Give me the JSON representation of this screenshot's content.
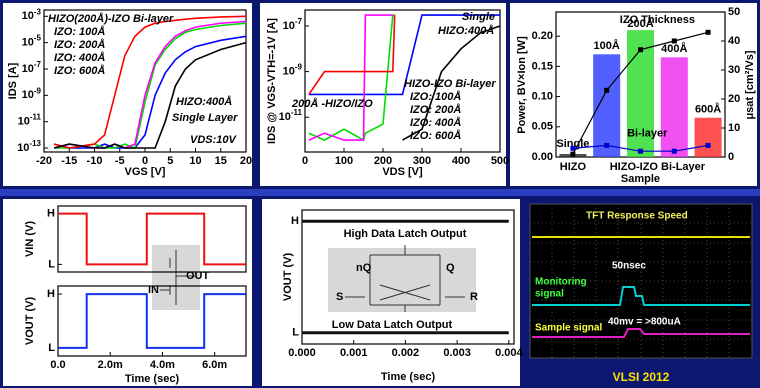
{
  "chart_data": [
    {
      "type": "line",
      "log_y": true,
      "y_label": "IDS [A]",
      "x_label": "VGS [V]",
      "xlim": [
        -20,
        20
      ],
      "xticks": [
        -20,
        -15,
        -10,
        -5,
        0,
        5,
        10,
        15,
        20
      ],
      "ylim": [
        5e-14,
        0.003
      ],
      "yticks": [
        {
          "value": 1e-13,
          "label": "10-13"
        },
        {
          "value": 1e-11,
          "label": "10-11"
        },
        {
          "value": 1e-09,
          "label": "10-9"
        },
        {
          "value": 1e-07,
          "label": "10-7"
        },
        {
          "value": 1e-05,
          "label": "10-5"
        },
        {
          "value": 0.001,
          "label": "10-3"
        }
      ],
      "legend_title": "HIZO(200Å)-IZO Bi-layer",
      "annotations": [
        "HIZO:400Å",
        "Single Layer",
        "VDS:10V"
      ],
      "x": [
        -18,
        -15,
        -10,
        -8,
        -6,
        -4,
        -2,
        0,
        2,
        4,
        6,
        8,
        10,
        15,
        20
      ],
      "series": [
        {
          "name": "IZO: 100Å",
          "color": "#0000ff",
          "values": [
            2e-13,
            1e-13,
            1e-13,
            2e-13,
            1e-13,
            1e-13,
            1e-13,
            1e-12,
            1e-09,
            5e-08,
            5e-07,
            2e-06,
            5e-06,
            1.5e-05,
            3e-05
          ]
        },
        {
          "name": "IZO: 200Å",
          "color": "#00dd00",
          "values": [
            1e-13,
            1e-13,
            2e-13,
            1e-13,
            1e-13,
            2e-13,
            1e-13,
            3e-10,
            2e-07,
            3e-06,
            2e-05,
            6e-05,
            0.0001,
            0.0002,
            0.0003
          ]
        },
        {
          "name": "IZO: 400Å",
          "color": "#ff00ff",
          "values": [
            1e-13,
            2e-13,
            1e-13,
            1e-13,
            2e-13,
            1e-13,
            2e-13,
            1e-09,
            3e-07,
            5e-06,
            3e-05,
            8e-05,
            0.00015,
            0.0003,
            0.0004
          ]
        },
        {
          "name": "IZO: 600Å",
          "color": "#ff0000",
          "values": [
            2e-13,
            1e-13,
            2e-13,
            1e-12,
            1e-09,
            1e-06,
            3e-05,
            0.00015,
            0.0003,
            0.0004,
            0.0005,
            0.0006,
            0.0007,
            0.0009,
            0.001
          ]
        },
        {
          "color": "#000000",
          "values": [
            1e-13,
            2e-13,
            1e-13,
            1e-13,
            2e-13,
            1e-13,
            1e-13,
            1e-13,
            1e-13,
            1e-11,
            5e-09,
            1e-07,
            5e-07,
            3e-06,
            1e-05
          ]
        }
      ]
    },
    {
      "type": "line",
      "log_y": true,
      "y_label": "IDS @ VGS-VTH=-1V [A]",
      "x_label": "VDS [V]",
      "xlim": [
        0,
        500
      ],
      "xticks": [
        0,
        100,
        200,
        300,
        400,
        500
      ],
      "ylim": [
        3e-13,
        5e-07
      ],
      "yticks": [
        {
          "value": 1e-11,
          "label": "10-11"
        },
        {
          "value": 1e-09,
          "label": "10-9"
        },
        {
          "value": 1e-07,
          "label": "10-7"
        }
      ],
      "legend_title": "HIZO-IZO Bi-layer",
      "annotations": [
        "Single",
        "HIZO:400Å",
        "200Å -HIZO/IZO"
      ],
      "x": [
        10,
        50,
        100,
        150,
        155,
        200,
        225,
        230,
        250,
        300,
        350,
        400,
        450,
        500
      ],
      "series": [
        {
          "name": "IZO: 100Å",
          "color": "#0000ff",
          "values": [
            1e-10,
            1e-10,
            1e-10,
            1e-10,
            1e-10,
            1e-10,
            1e-10,
            1e-10,
            1e-10,
            3e-07,
            3e-07,
            3e-07,
            3e-07,
            3e-07
          ]
        },
        {
          "name": "IZO: 200Å",
          "color": "#00dd00",
          "values": [
            2e-12,
            1e-12,
            3e-12,
            1e-12,
            2e-12,
            5e-12,
            3e-07,
            3e-07,
            null,
            null,
            null,
            null,
            null,
            null
          ]
        },
        {
          "name": "IZO: 400Å",
          "color": "#ff00ff",
          "values": [
            1e-12,
            2e-12,
            1e-12,
            1e-12,
            3e-07,
            3e-07,
            3e-07,
            null,
            null,
            null,
            null,
            null,
            null,
            null
          ]
        },
        {
          "name": "IZO: 600Å",
          "color": "#ff0000",
          "values": [
            1e-10,
            1e-09,
            1e-09,
            1e-09,
            1e-09,
            1e-09,
            1e-09,
            3e-07,
            null,
            null,
            null,
            null,
            null,
            null
          ]
        },
        {
          "color": "#000000",
          "values": [
            null,
            null,
            null,
            null,
            null,
            null,
            null,
            null,
            1e-12,
            3e-12,
            1e-09,
            1e-08,
            5e-08,
            1e-07
          ]
        }
      ]
    },
    {
      "type": "bar",
      "title": "IZO Thickness",
      "x_label": "Sample",
      "y_label": "Power, BV×Ion [W]",
      "y2_label": "μsat [cm²/Vs]",
      "group_labels": [
        "HIZO",
        "HIZO-IZO Bi-Layer"
      ],
      "categories": [
        "Single",
        "100Å",
        "200Å",
        "400Å",
        "600Å"
      ],
      "values": [
        0.005,
        0.17,
        0.21,
        0.165,
        0.065
      ],
      "colors": [
        "#333333",
        "#3344ff",
        "#33dd33",
        "#ee33ee",
        "#ff3333"
      ],
      "ylim": [
        0,
        0.24
      ],
      "yticks": [
        {
          "value": 0,
          "label": "0.00"
        },
        {
          "value": 0.05,
          "label": "0.05"
        },
        {
          "value": 0.1,
          "label": "0.10"
        },
        {
          "value": 0.15,
          "label": "0.15"
        },
        {
          "value": 0.2,
          "label": "0.20"
        }
      ],
      "y2lim": [
        0,
        50
      ],
      "y2ticks": [
        0,
        10,
        20,
        30,
        40,
        50
      ],
      "series": [
        {
          "color": "#000000",
          "axis": "y2",
          "values": [
            1,
            23,
            37,
            40,
            43
          ]
        },
        {
          "name": "Bi-layer",
          "color": "#0000cc",
          "axis": "y2",
          "values": [
            3,
            4,
            2,
            2,
            4
          ]
        }
      ]
    },
    {
      "type": "line",
      "y_label": "VIN (V)",
      "xlim": [
        0,
        0.0072
      ],
      "ylim": [
        -0.15,
        1.15
      ],
      "yticks": [
        {
          "value": 1,
          "label": "H"
        },
        {
          "value": 0,
          "label": "L"
        }
      ],
      "diagram_labels": [
        "OUT",
        "IN"
      ],
      "x": [
        0,
        0.0011,
        0.0011,
        0.0034,
        0.0034,
        0.0056,
        0.0056,
        0.0072
      ],
      "series": [
        {
          "color": "#ee1111",
          "values": [
            1,
            1,
            0,
            0,
            1,
            1,
            0,
            0
          ]
        }
      ]
    },
    {
      "type": "line",
      "y_label": "VOUT (V)",
      "x_label": "Time (sec)",
      "xlim": [
        0,
        0.0072
      ],
      "ylim": [
        -0.15,
        1.15
      ],
      "xticks": [
        {
          "value": 0,
          "label": "0.0"
        },
        {
          "value": 0.002,
          "label": "2.0m"
        },
        {
          "value": 0.004,
          "label": "4.0m"
        },
        {
          "value": 0.006,
          "label": "6.0m"
        }
      ],
      "yticks": [
        {
          "value": 1,
          "label": "H"
        },
        {
          "value": 0,
          "label": "L"
        }
      ],
      "x": [
        0,
        0.0011,
        0.0011,
        0.0034,
        0.0034,
        0.0056,
        0.0056,
        0.0072
      ],
      "series": [
        {
          "color": "#1133ee",
          "values": [
            0,
            0,
            1,
            1,
            0,
            0,
            1,
            1
          ]
        }
      ]
    },
    {
      "type": "line",
      "y_label": "VOUT (V)",
      "x_label": "Time (sec)",
      "xlim": [
        0,
        0.0041
      ],
      "ylim": [
        -0.1,
        1.1
      ],
      "xticks": [
        {
          "value": 0,
          "label": "0.000"
        },
        {
          "value": 0.001,
          "label": "0.001"
        },
        {
          "value": 0.002,
          "label": "0.002"
        },
        {
          "value": 0.003,
          "label": "0.003"
        },
        {
          "value": 0.004,
          "label": "0.004"
        }
      ],
      "yticks": [
        {
          "value": 1,
          "label": "H"
        },
        {
          "value": 0,
          "label": "L"
        }
      ],
      "annotations": [
        "High Data Latch Output",
        "Low Data Latch Output"
      ],
      "diagram_labels": [
        "nQ",
        "Q",
        "S",
        "R"
      ],
      "x": [
        0,
        0.0005,
        0.001,
        0.0015,
        0.002,
        0.0025,
        0.003,
        0.0035,
        0.004
      ],
      "series": [
        {
          "color": "#111111",
          "values": [
            1,
            1,
            1,
            1,
            1,
            1,
            1,
            1,
            1
          ]
        },
        {
          "color": "#111111",
          "values": [
            0,
            0,
            0,
            0,
            0,
            0,
            0,
            0,
            0
          ]
        }
      ]
    }
  ],
  "oscilloscope": {
    "title": "TFT Response Speed",
    "pulse": "50nsec",
    "monitoring": [
      "Monitoring",
      "signal"
    ],
    "sample": "Sample signal",
    "scale": "40mv = >800uA"
  },
  "footer": "VLSI 2012"
}
